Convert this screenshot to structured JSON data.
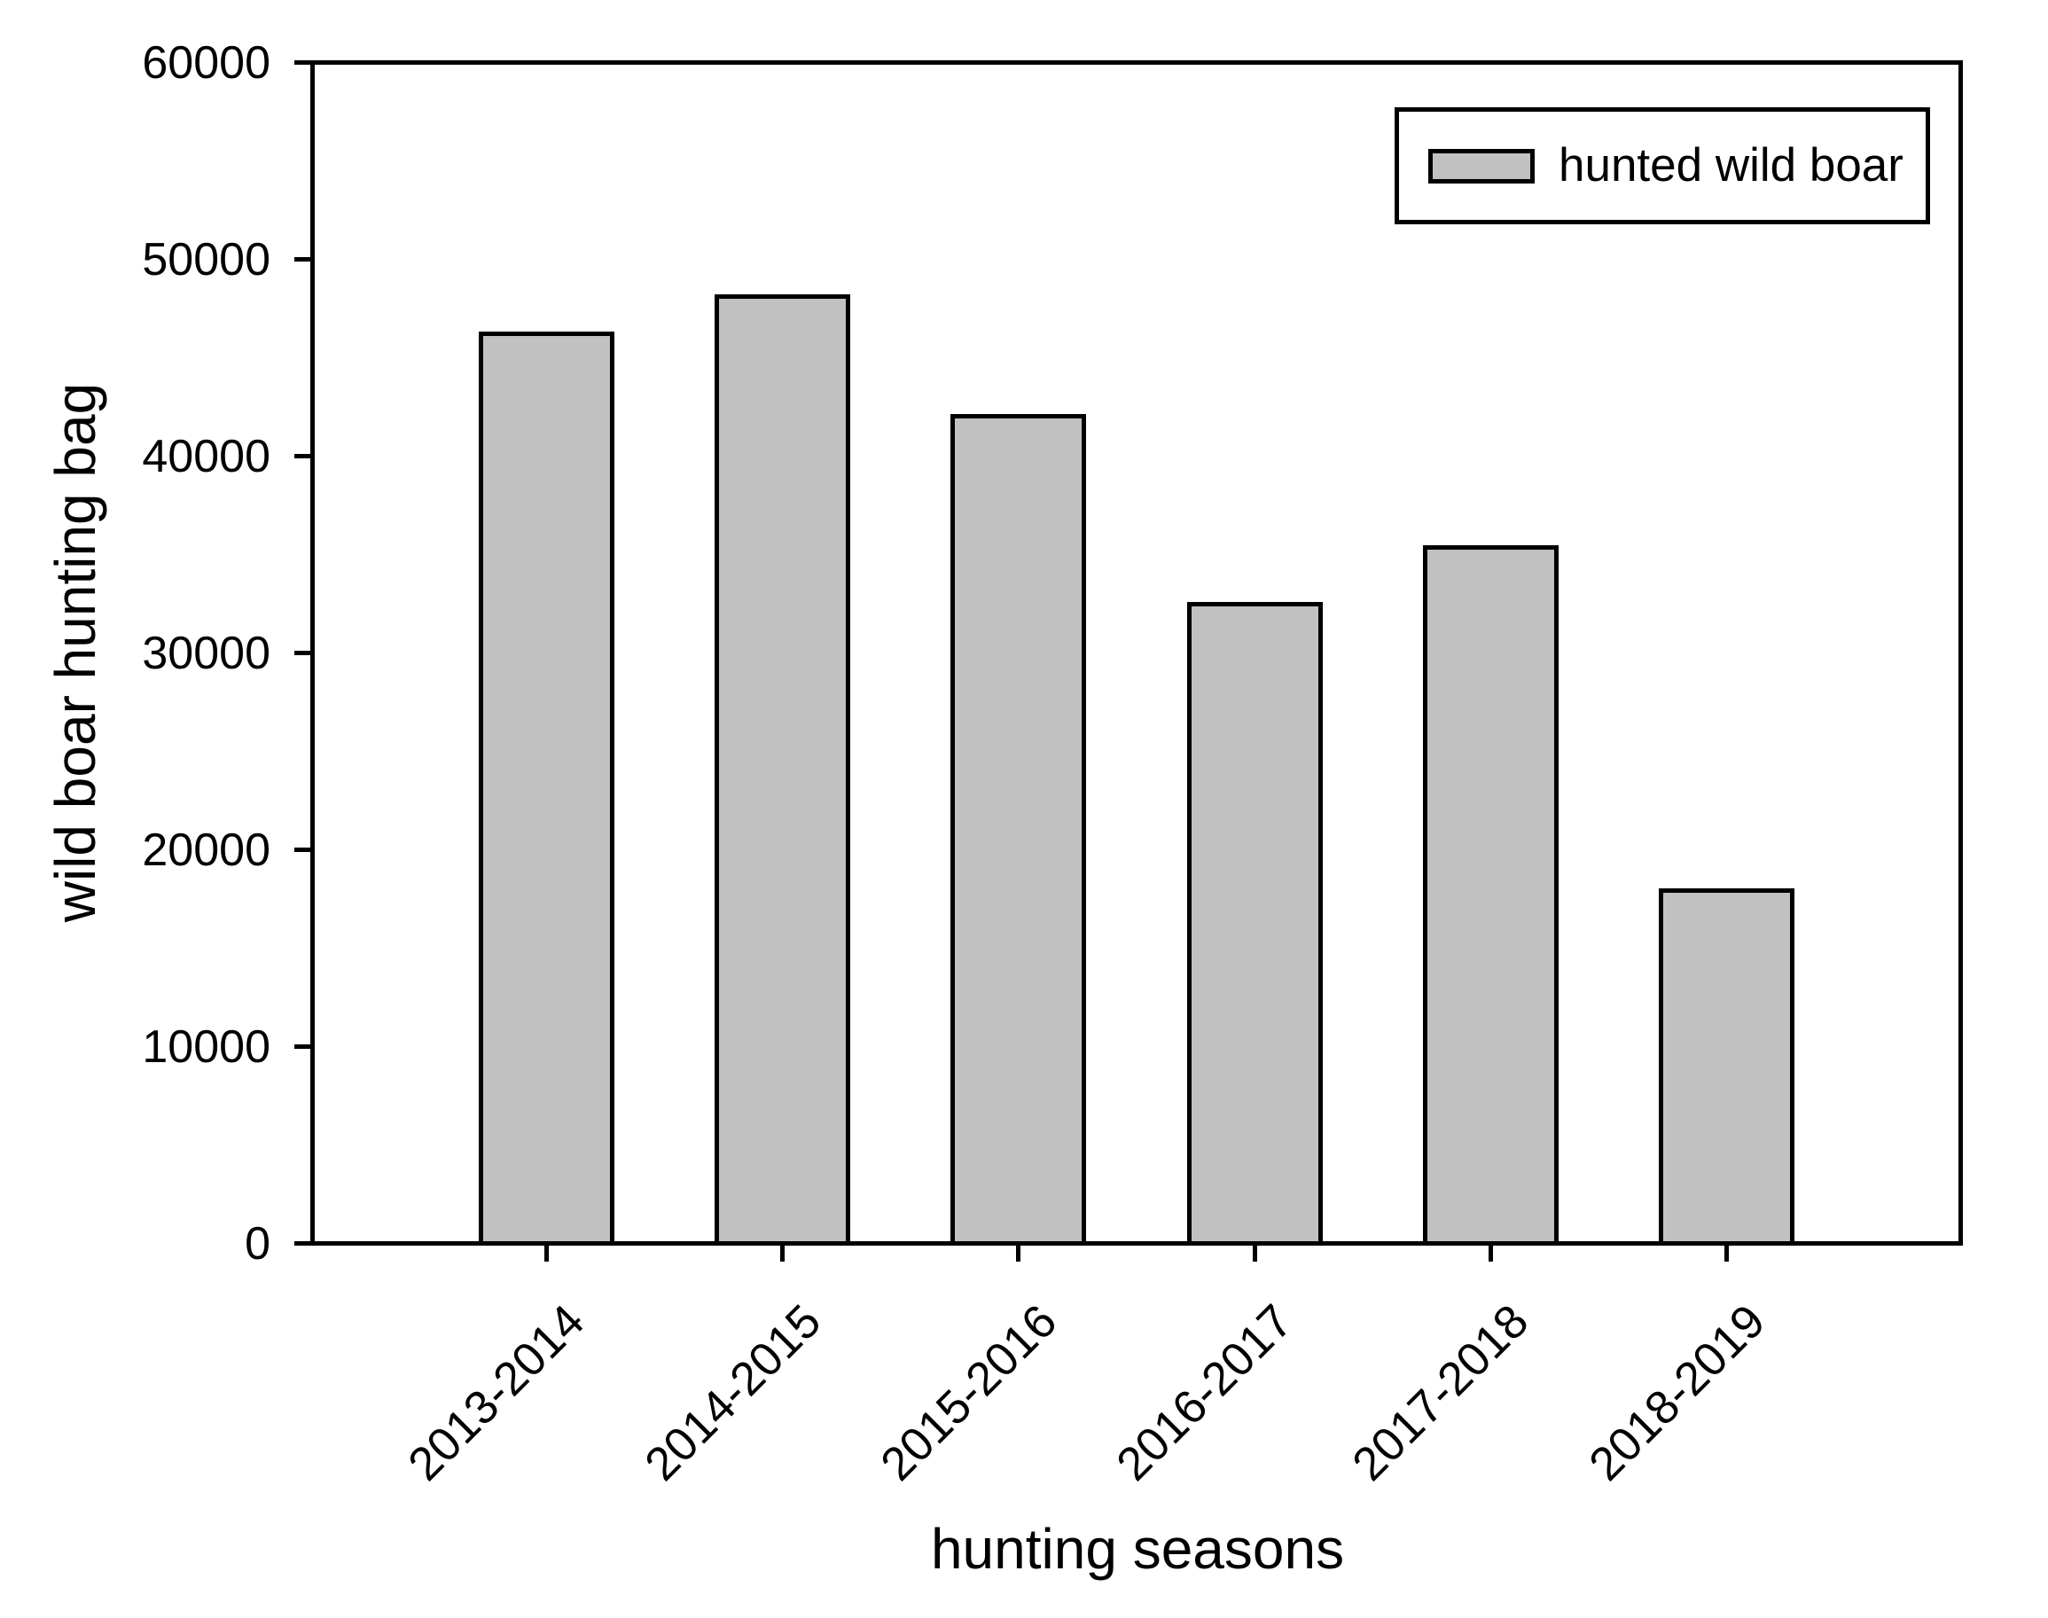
{
  "figure": {
    "background": "#ffffff"
  },
  "chart_data": {
    "type": "bar",
    "title": "",
    "categories": [
      "2013-2014",
      "2014-2015",
      "2015-2016",
      "2016-2017",
      "2017-2018",
      "2018-2019"
    ],
    "series": [
      {
        "name": "hunted wild boar",
        "values": [
          46400,
          48300,
          42200,
          32600,
          35500,
          18000
        ]
      }
    ],
    "xlabel": "hunting seasons",
    "ylabel": "wild boar hunting bag",
    "ylim": [
      0,
      60000
    ],
    "yticks": [
      0,
      10000,
      20000,
      30000,
      40000,
      50000,
      60000
    ],
    "xtick_label_rotation_deg": -45,
    "grid": false,
    "legend": {
      "label": "hunted wild boar",
      "position": "top-right"
    },
    "colors": {
      "bar_fill": "#c1c1c1",
      "bar_border": "#000000",
      "axis": "#000000",
      "text": "#000000",
      "background": "#ffffff"
    }
  }
}
